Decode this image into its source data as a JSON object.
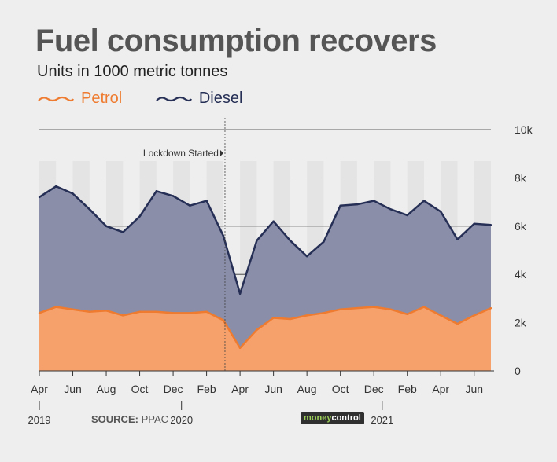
{
  "title": "Fuel consumption recovers",
  "subtitle": "Units in 1000 metric tonnes",
  "source_label": "SOURCE:",
  "source_value": "PPAC",
  "logo": {
    "part1": "money",
    "part2": "control"
  },
  "colors": {
    "petrol": "#f6a16c",
    "petrol_line": "#ee7b2f",
    "diesel": "#8a8ea8",
    "diesel_line": "#262f55",
    "band": "#e4e4e4"
  },
  "chart_data": {
    "type": "area",
    "title": "Fuel consumption recovers",
    "subtitle": "Units in 1000 metric tonnes",
    "stacked": true,
    "x": [
      "2019-04",
      "2019-05",
      "2019-06",
      "2019-07",
      "2019-08",
      "2019-09",
      "2019-10",
      "2019-11",
      "2019-12",
      "2020-01",
      "2020-02",
      "2020-03",
      "2020-04",
      "2020-05",
      "2020-06",
      "2020-07",
      "2020-08",
      "2020-09",
      "2020-10",
      "2020-11",
      "2020-12",
      "2021-01",
      "2021-02",
      "2021-03",
      "2021-04",
      "2021-05",
      "2021-06",
      "2021-07"
    ],
    "series": [
      {
        "name": "Petrol",
        "values": [
          2400,
          2650,
          2550,
          2450,
          2500,
          2300,
          2450,
          2450,
          2400,
          2400,
          2450,
          2100,
          950,
          1700,
          2200,
          2150,
          2300,
          2400,
          2550,
          2600,
          2650,
          2550,
          2350,
          2650,
          2300,
          1950,
          2300,
          2600
        ]
      },
      {
        "name": "Diesel",
        "values": [
          4800,
          5000,
          4800,
          4250,
          3500,
          3450,
          3950,
          5000,
          4850,
          4450,
          4600,
          3500,
          2250,
          3700,
          4000,
          3250,
          2450,
          2950,
          4300,
          4300,
          4400,
          4150,
          4100,
          4400,
          4300,
          3500,
          3800,
          3450
        ]
      }
    ],
    "ylim": [
      0,
      10000
    ],
    "yticks": [
      {
        "value": 0,
        "label": "0"
      },
      {
        "value": 2000,
        "label": "2k"
      },
      {
        "value": 4000,
        "label": "4k"
      },
      {
        "value": 6000,
        "label": "6k"
      },
      {
        "value": 8000,
        "label": "8k"
      },
      {
        "value": 10000,
        "label": "10k"
      }
    ],
    "xticks": [
      {
        "x": "2019-04",
        "label": "Apr"
      },
      {
        "x": "2019-06",
        "label": "Jun"
      },
      {
        "x": "2019-08",
        "label": "Aug"
      },
      {
        "x": "2019-10",
        "label": "Oct"
      },
      {
        "x": "2019-12",
        "label": "Dec"
      },
      {
        "x": "2020-02",
        "label": "Feb"
      },
      {
        "x": "2020-04",
        "label": "Apr"
      },
      {
        "x": "2020-06",
        "label": "Jun"
      },
      {
        "x": "2020-08",
        "label": "Aug"
      },
      {
        "x": "2020-10",
        "label": "Oct"
      },
      {
        "x": "2020-12",
        "label": "Dec"
      },
      {
        "x": "2021-02",
        "label": "Feb"
      },
      {
        "x": "2021-04",
        "label": "Apr"
      },
      {
        "x": "2021-06",
        "label": "Jun"
      }
    ],
    "year_labels": [
      {
        "x": "2019-04",
        "label": "2019"
      },
      {
        "x": "2020-01",
        "label": "2020"
      },
      {
        "x": "2021-01",
        "label": "2021"
      }
    ],
    "annotation": {
      "x": "2020-03",
      "label": "Lockdown Started"
    },
    "legend": "top-left",
    "grid": true
  }
}
